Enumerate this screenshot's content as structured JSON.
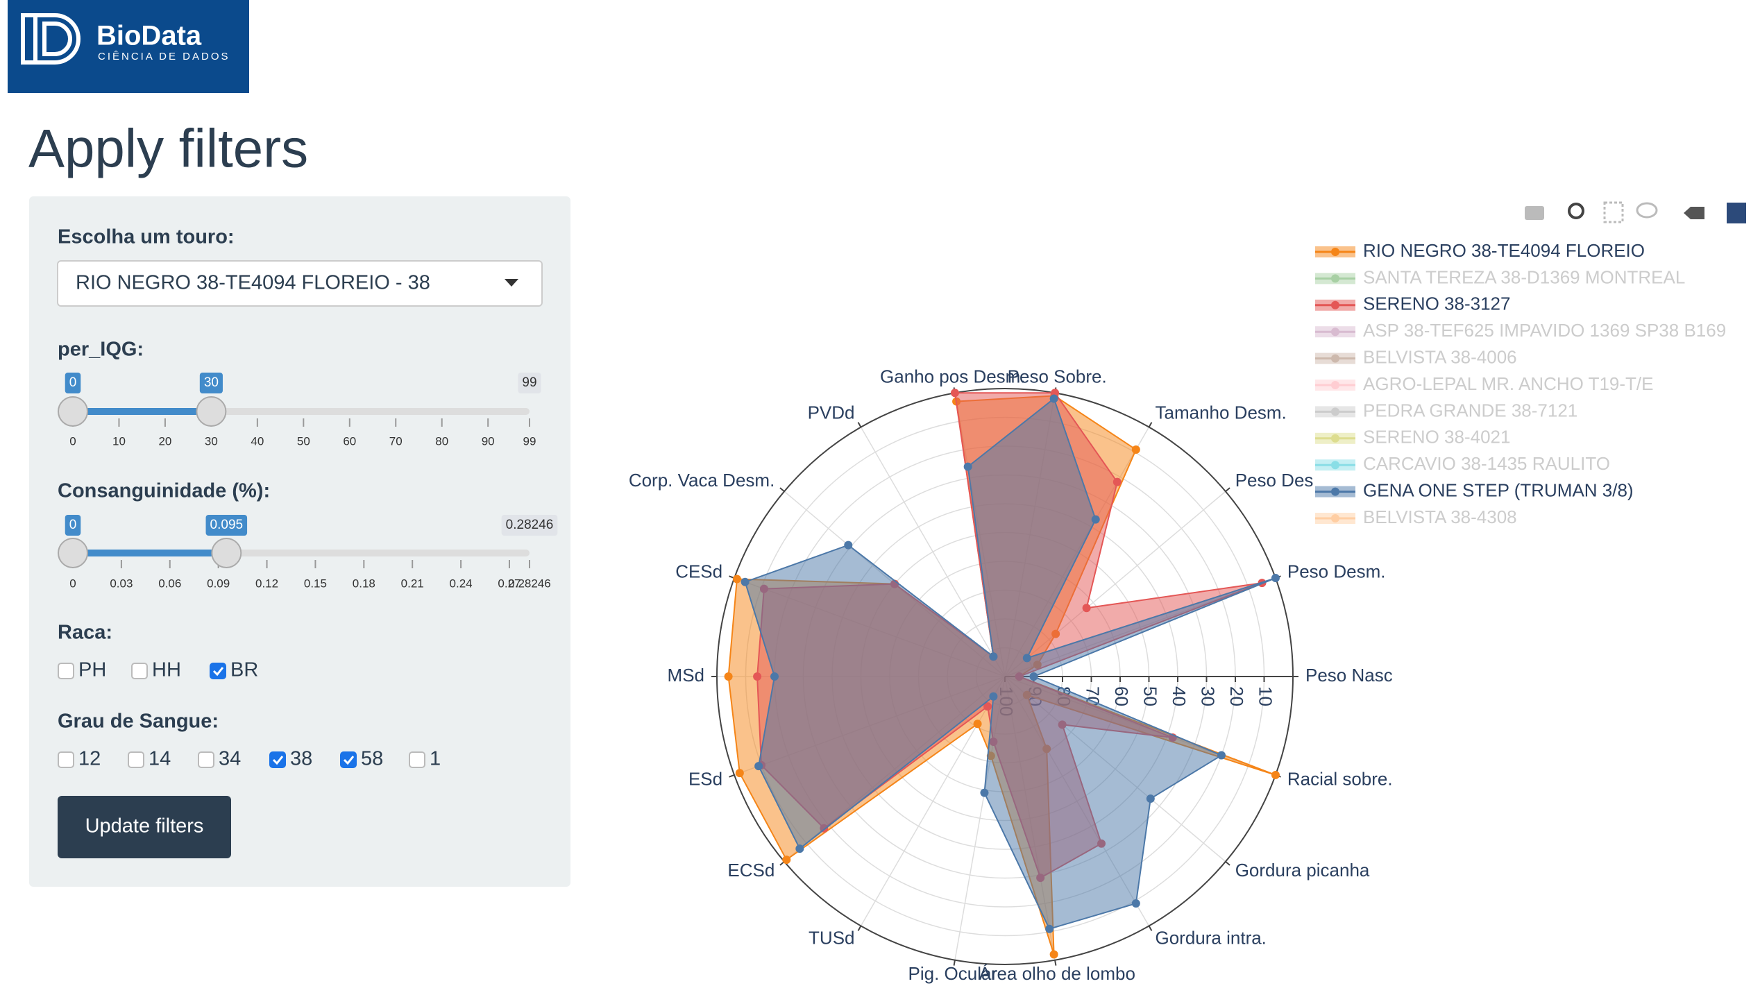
{
  "logo": {
    "name": "BioData",
    "tagline": "CIÊNCIA DE DADOS"
  },
  "title": "Apply filters",
  "filters": {
    "bull": {
      "label": "Escolha um touro:",
      "selected": "RIO NEGRO 38-TE4094 FLOREIO - 38"
    },
    "per_iqg": {
      "label": "per_IQG:",
      "min": 0,
      "max": 99,
      "values": [
        0,
        30
      ],
      "ticks": [
        0,
        10,
        20,
        30,
        40,
        50,
        60,
        70,
        80,
        90,
        99
      ]
    },
    "consanguinidade": {
      "label": "Consanguinidade (%):",
      "min": 0,
      "max": 0.28246,
      "values": [
        0,
        0.095
      ],
      "ticks": [
        0,
        0.03,
        0.06,
        0.09,
        0.12,
        0.15,
        0.18,
        0.21,
        0.24,
        0.27,
        0.28246
      ]
    },
    "raca": {
      "label": "Raca:",
      "options": [
        {
          "label": "PH",
          "checked": false
        },
        {
          "label": "HH",
          "checked": false
        },
        {
          "label": "BR",
          "checked": true
        }
      ]
    },
    "grau": {
      "label": "Grau de Sangue:",
      "options": [
        {
          "label": "12",
          "checked": false
        },
        {
          "label": "14",
          "checked": false
        },
        {
          "label": "34",
          "checked": false
        },
        {
          "label": "38",
          "checked": true
        },
        {
          "label": "58",
          "checked": true
        },
        {
          "label": "1",
          "checked": false
        }
      ]
    },
    "button": "Update filters"
  },
  "chart_data": {
    "type": "radar",
    "categories": [
      "Peso Nasc",
      "Peso Desm.",
      "Peso Des",
      "Tamanho Desm.",
      "Peso Sobre.",
      "Ganho pos Desm.",
      "PVDd",
      "Corp. Vaca Desm.",
      "CESd",
      "MSd",
      "ESd",
      "ECSd",
      "TUSd",
      "Pig. Ocular",
      "Área olho de lombo",
      "Gordura intra.",
      "Gordura picanha",
      "Racial sobre."
    ],
    "rlim": [
      100,
      0
    ],
    "rticks": [
      100,
      90,
      80,
      70,
      60,
      50,
      40,
      30,
      20,
      10
    ],
    "grid": true,
    "legend": "top-right",
    "series": [
      {
        "name": "RIO NEGRO 38-TE4094 FLOREIO",
        "color": "#f58518",
        "visible": true,
        "values": [
          95,
          88,
          77,
          9,
          1,
          3,
          92,
          50,
          1,
          4,
          2,
          1,
          81,
          72,
          2,
          71,
          90,
          0
        ]
      },
      {
        "name": "SANTA TEREZA 38-D1369 MONTREAL",
        "color": "#54a24b",
        "visible": false
      },
      {
        "name": "SERENO 38-3127",
        "color": "#e45756",
        "visible": true,
        "values": [
          95,
          5,
          63,
          22,
          0,
          0,
          92,
          50,
          11,
          14,
          10,
          18,
          88,
          77,
          29,
          33,
          74,
          38
        ]
      },
      {
        "name": "ASP 38-TEF625 IMPAVIDO 1369 SP38 B169",
        "color": "#b279a2",
        "visible": false
      },
      {
        "name": "BELVISTA 38-4006",
        "color": "#9d755d",
        "visible": false
      },
      {
        "name": "AGRO-LEPAL MR. ANCHO T19-T/E",
        "color": "#ff9da6",
        "visible": false
      },
      {
        "name": "PEDRA GRANDE 38-7121",
        "color": "#9a9a9a",
        "visible": false
      },
      {
        "name": "SERENO 38-4021",
        "color": "#bcbd22",
        "visible": false
      },
      {
        "name": "CARCAVIO 38-1435 RAULITO",
        "color": "#17becf",
        "visible": false
      },
      {
        "name": "GENA ONE STEP  (TRUMAN 3/8)",
        "color": "#4c78a8",
        "visible": true,
        "values": [
          90,
          0,
          90,
          37,
          2,
          26,
          92,
          29,
          4,
          20,
          9,
          7,
          92,
          59,
          11,
          9,
          34,
          20
        ]
      },
      {
        "name": "BELVISTA 38-4308",
        "color": "#ff9e4a",
        "visible": false
      }
    ]
  }
}
